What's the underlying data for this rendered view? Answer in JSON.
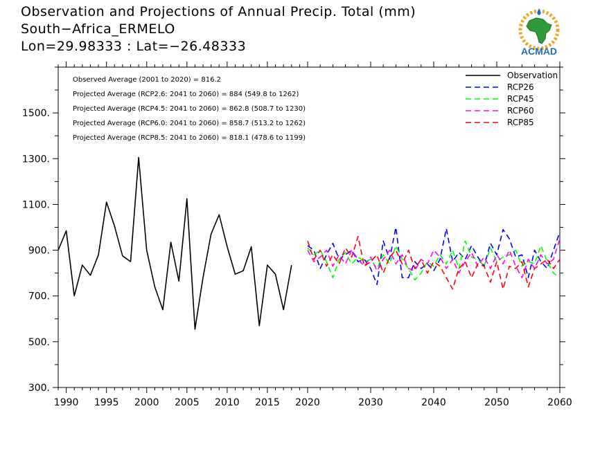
{
  "header": {
    "title_line1": "Observation and Projections of Annual Precip. Total (mm)",
    "title_line2": "South−Africa_ERMELO",
    "title_line3": "Lon=29.98333 : Lat=−26.48333"
  },
  "logo": {
    "text": "ACMAD",
    "icon": "acmad-africa-logo"
  },
  "colors": {
    "observation": "#000000",
    "rcp26": "#0000ff",
    "rcp45": "#00ff00",
    "rcp60": "#ff00ff",
    "rcp85": "#ff0000"
  },
  "chart_data": {
    "type": "line",
    "title": "Observation and Projections of Annual Precip. Total (mm)",
    "xlabel": "",
    "ylabel": "",
    "xlim": [
      1989,
      2060
    ],
    "ylim": [
      300,
      1700
    ],
    "y_ticks": [
      300,
      500,
      700,
      900,
      1100,
      1300,
      1500
    ],
    "y_tick_labels": [
      "300.",
      "500.",
      "700.",
      "900.",
      "1100.",
      "1300.",
      "1500."
    ],
    "x_ticks": [
      1990,
      1995,
      2000,
      2005,
      2010,
      2015,
      2020,
      2030,
      2040,
      2050,
      2060
    ],
    "x_tick_labels": [
      "1990",
      "1995",
      "2000",
      "2005",
      "2010",
      "2015",
      "2020",
      "2030",
      "2040",
      "2050",
      "2060"
    ],
    "grid": false,
    "legend_position": "top-right",
    "annotations": [
      "Observed Average (2001 to 2020) = 816.2",
      "Projected Average (RCP2.6: 2041 to 2060) = 884 (549.8 to 1262)",
      "Projected Average (RCP4.5: 2041 to 2060) = 862.8 (508.7 to 1230)",
      "Projected Average (RCP6.0: 2041 to 2060) = 858.7 (513.2 to 1262)",
      "Projected Average (RCP8.5: 2041 to 2060) = 818.1 (478.6 to 1199)"
    ],
    "series": [
      {
        "name": "Observation",
        "style": "solid",
        "x": [
          1989,
          1990,
          1991,
          1992,
          1993,
          1994,
          1995,
          1996,
          1997,
          1998,
          1999,
          2000,
          2001,
          2002,
          2003,
          2004,
          2005,
          2006,
          2007,
          2008,
          2009,
          2010,
          2011,
          2012,
          2013,
          2014,
          2015,
          2016,
          2017,
          2018,
          2019,
          2020
        ],
        "values": [
          900,
          985,
          700,
          835,
          790,
          880,
          1110,
          1005,
          875,
          850,
          1305,
          900,
          740,
          640,
          935,
          765,
          1125,
          555,
          780,
          970,
          1055,
          915,
          795,
          810,
          915,
          570,
          835,
          795,
          640,
          835,
          null,
          null
        ]
      },
      {
        "name": "RCP26",
        "style": "dashed",
        "x": [
          2020,
          2021,
          2022,
          2023,
          2024,
          2025,
          2026,
          2027,
          2028,
          2029,
          2030,
          2031,
          2032,
          2033,
          2034,
          2035,
          2036,
          2037,
          2038,
          2039,
          2040,
          2041,
          2042,
          2043,
          2044,
          2045,
          2046,
          2047,
          2048,
          2049,
          2050,
          2051,
          2052,
          2053,
          2054,
          2055,
          2056,
          2057,
          2058,
          2059,
          2060
        ],
        "values": [
          920,
          900,
          820,
          880,
          930,
          860,
          880,
          900,
          850,
          860,
          820,
          750,
          940,
          860,
          1000,
          780,
          780,
          850,
          820,
          840,
          810,
          860,
          995,
          850,
          890,
          860,
          920,
          870,
          830,
          930,
          880,
          990,
          950,
          870,
          880,
          780,
          900,
          850,
          820,
          900,
          980
        ]
      },
      {
        "name": "RCP45",
        "style": "dashed",
        "x": [
          2020,
          2021,
          2022,
          2023,
          2024,
          2025,
          2026,
          2027,
          2028,
          2029,
          2030,
          2031,
          2032,
          2033,
          2034,
          2035,
          2036,
          2037,
          2038,
          2039,
          2040,
          2041,
          2042,
          2043,
          2044,
          2045,
          2046,
          2047,
          2048,
          2049,
          2050,
          2051,
          2052,
          2053,
          2054,
          2055,
          2056,
          2057,
          2058,
          2059,
          2060
        ],
        "values": [
          910,
          880,
          900,
          850,
          780,
          860,
          890,
          840,
          870,
          850,
          860,
          820,
          880,
          840,
          920,
          860,
          820,
          770,
          800,
          850,
          830,
          880,
          840,
          900,
          820,
          940,
          870,
          860,
          830,
          910,
          850,
          870,
          880,
          900,
          830,
          850,
          840,
          920,
          850,
          800,
          780
        ]
      },
      {
        "name": "RCP60",
        "style": "dashed",
        "x": [
          2020,
          2021,
          2022,
          2023,
          2024,
          2025,
          2026,
          2027,
          2028,
          2029,
          2030,
          2031,
          2032,
          2033,
          2034,
          2035,
          2036,
          2037,
          2038,
          2039,
          2040,
          2041,
          2042,
          2043,
          2044,
          2045,
          2046,
          2047,
          2048,
          2049,
          2050,
          2051,
          2052,
          2053,
          2054,
          2055,
          2056,
          2057,
          2058,
          2059,
          2060
        ],
        "values": [
          900,
          850,
          870,
          900,
          830,
          880,
          840,
          900,
          860,
          830,
          870,
          810,
          860,
          900,
          840,
          880,
          820,
          810,
          860,
          840,
          900,
          870,
          820,
          860,
          800,
          850,
          890,
          830,
          870,
          820,
          880,
          840,
          900,
          830,
          780,
          860,
          820,
          880,
          840,
          860,
          950
        ]
      },
      {
        "name": "RCP85",
        "style": "dashed",
        "x": [
          2020,
          2021,
          2022,
          2023,
          2024,
          2025,
          2026,
          2027,
          2028,
          2029,
          2030,
          2031,
          2032,
          2033,
          2034,
          2035,
          2036,
          2037,
          2038,
          2039,
          2040,
          2041,
          2042,
          2043,
          2044,
          2045,
          2046,
          2047,
          2048,
          2049,
          2050,
          2051,
          2052,
          2053,
          2054,
          2055,
          2056,
          2057,
          2058,
          2059,
          2060
        ],
        "values": [
          940,
          860,
          900,
          830,
          880,
          840,
          910,
          870,
          960,
          830,
          850,
          880,
          800,
          870,
          900,
          840,
          900,
          820,
          860,
          800,
          850,
          830,
          780,
          730,
          820,
          850,
          780,
          840,
          830,
          760,
          850,
          730,
          830,
          820,
          850,
          740,
          820,
          840,
          860,
          820,
          860
        ]
      }
    ]
  }
}
